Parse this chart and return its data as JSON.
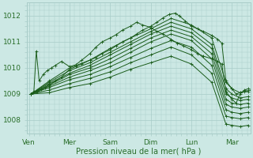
{
  "background_color": "#cce8e4",
  "plot_bg_color": "#cce8e4",
  "line_color": "#1a5c1a",
  "grid_color": "#a8ccc8",
  "text_color": "#2a6e2a",
  "xlabel_text": "Pression niveau de la mer( hPa )",
  "x_ticks_labels": [
    "Ven",
    "Mer",
    "Sam",
    "Dim",
    "Lun",
    "Mar"
  ],
  "x_ticks_pos": [
    0,
    1,
    2,
    3,
    4,
    5
  ],
  "ylim": [
    1007.5,
    1012.5
  ],
  "yticks": [
    1008,
    1009,
    1010,
    1011,
    1012
  ],
  "xlim": [
    -0.05,
    5.45
  ],
  "series": [
    [
      0.05,
      1009.0,
      0.1,
      1009.05,
      0.2,
      1009.1,
      0.3,
      1009.18,
      0.4,
      1009.25,
      0.5,
      1009.35,
      0.65,
      1009.5,
      0.8,
      1009.65,
      1.0,
      1009.95,
      1.15,
      1010.05,
      1.3,
      1010.15,
      1.5,
      1010.3,
      1.65,
      1010.4,
      1.8,
      1010.55,
      2.0,
      1010.7,
      2.15,
      1010.85,
      2.3,
      1011.0,
      2.5,
      1011.15,
      2.65,
      1011.3,
      2.8,
      1011.45,
      3.0,
      1011.6,
      3.15,
      1011.75,
      3.3,
      1011.92,
      3.45,
      1012.05,
      3.6,
      1012.1,
      3.7,
      1012.0,
      3.85,
      1011.8,
      4.0,
      1011.6,
      4.15,
      1011.5,
      4.3,
      1011.4,
      4.5,
      1011.25,
      4.65,
      1011.1,
      4.75,
      1010.95,
      4.85,
      1009.5,
      5.0,
      1009.2,
      5.1,
      1009.0,
      5.2,
      1009.05,
      5.3,
      1009.1,
      5.45,
      1009.15
    ],
    [
      0.05,
      1009.0,
      0.5,
      1009.5,
      1.0,
      1010.0,
      1.5,
      1010.3,
      2.0,
      1010.75,
      2.5,
      1011.15,
      3.0,
      1011.5,
      3.5,
      1011.9,
      4.0,
      1011.65,
      4.5,
      1011.15,
      4.85,
      1009.45,
      5.0,
      1009.2,
      5.2,
      1009.05,
      5.4,
      1009.1
    ],
    [
      0.05,
      1009.0,
      0.5,
      1009.45,
      1.0,
      1009.9,
      1.5,
      1010.2,
      2.0,
      1010.6,
      2.5,
      1011.0,
      3.0,
      1011.4,
      3.5,
      1011.75,
      4.0,
      1011.5,
      4.5,
      1010.9,
      4.85,
      1009.2,
      5.0,
      1009.0,
      5.2,
      1008.85,
      5.4,
      1008.9
    ],
    [
      0.05,
      1009.0,
      0.5,
      1009.4,
      1.0,
      1009.8,
      1.5,
      1010.1,
      2.0,
      1010.5,
      2.5,
      1010.9,
      3.0,
      1011.3,
      3.5,
      1011.6,
      4.0,
      1011.35,
      4.5,
      1010.75,
      4.85,
      1009.0,
      5.0,
      1008.85,
      5.2,
      1008.75,
      5.4,
      1008.8
    ],
    [
      0.05,
      1009.0,
      0.5,
      1009.35,
      1.0,
      1009.75,
      1.5,
      1010.0,
      2.0,
      1010.35,
      2.5,
      1010.75,
      3.0,
      1011.15,
      3.5,
      1011.45,
      4.0,
      1011.2,
      4.5,
      1010.55,
      4.85,
      1008.8,
      5.0,
      1008.65,
      5.2,
      1008.6,
      5.4,
      1008.65
    ],
    [
      0.05,
      1009.0,
      0.5,
      1009.3,
      1.0,
      1009.65,
      1.5,
      1009.9,
      2.0,
      1010.2,
      2.5,
      1010.6,
      3.0,
      1011.0,
      3.5,
      1011.3,
      4.0,
      1011.05,
      4.5,
      1010.35,
      4.85,
      1008.6,
      5.0,
      1008.5,
      5.2,
      1008.45,
      5.4,
      1008.5
    ],
    [
      0.05,
      1009.0,
      0.5,
      1009.25,
      1.0,
      1009.55,
      1.5,
      1009.75,
      2.0,
      1010.05,
      2.5,
      1010.4,
      3.0,
      1010.75,
      3.5,
      1011.05,
      4.0,
      1010.8,
      4.5,
      1010.1,
      4.85,
      1008.4,
      5.0,
      1008.3,
      5.2,
      1008.25,
      5.4,
      1008.3
    ],
    [
      0.05,
      1009.0,
      0.5,
      1009.15,
      1.0,
      1009.4,
      1.5,
      1009.6,
      2.0,
      1009.85,
      2.5,
      1010.2,
      3.0,
      1010.5,
      3.5,
      1010.8,
      4.0,
      1010.5,
      4.5,
      1009.8,
      4.85,
      1008.15,
      5.0,
      1008.1,
      5.2,
      1008.05,
      5.4,
      1008.1
    ],
    [
      0.05,
      1009.0,
      0.5,
      1009.05,
      1.0,
      1009.25,
      1.5,
      1009.4,
      2.0,
      1009.65,
      2.5,
      1009.95,
      3.0,
      1010.2,
      3.5,
      1010.45,
      4.0,
      1010.15,
      4.5,
      1009.45,
      4.85,
      1007.85,
      5.0,
      1007.8,
      5.2,
      1007.75,
      5.4,
      1007.8
    ],
    [
      0.05,
      1009.0,
      0.12,
      1009.1,
      0.18,
      1010.65,
      0.25,
      1009.5,
      0.35,
      1009.75,
      0.45,
      1009.9,
      0.55,
      1010.0,
      0.65,
      1010.1,
      0.8,
      1010.25,
      1.0,
      1010.05,
      1.15,
      1010.12,
      1.3,
      1010.3,
      1.5,
      1010.55,
      1.65,
      1010.8,
      1.8,
      1011.0,
      2.0,
      1011.15,
      2.15,
      1011.28,
      2.3,
      1011.45,
      2.5,
      1011.6,
      2.65,
      1011.75,
      2.8,
      1011.65,
      3.0,
      1011.55,
      3.15,
      1011.4,
      3.3,
      1011.3,
      3.5,
      1011.1,
      3.65,
      1010.95,
      3.8,
      1010.85,
      4.0,
      1010.7,
      4.15,
      1010.55,
      4.3,
      1010.45,
      4.5,
      1010.35,
      4.65,
      1010.25,
      4.75,
      1010.15,
      4.85,
      1009.1,
      5.0,
      1008.8,
      5.1,
      1008.65,
      5.2,
      1009.0,
      5.3,
      1009.15,
      5.4,
      1009.2
    ]
  ]
}
